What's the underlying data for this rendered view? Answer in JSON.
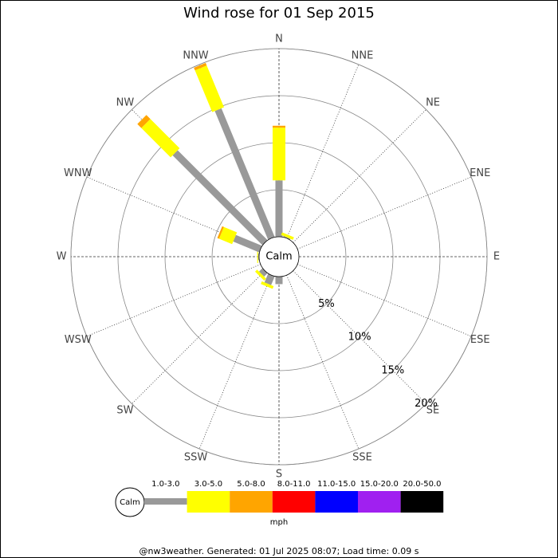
{
  "chart_data": {
    "type": "windrose",
    "title": "Wind rose for 01 Sep 2015",
    "directions": [
      "N",
      "NNE",
      "NE",
      "ENE",
      "E",
      "ESE",
      "SE",
      "SSE",
      "S",
      "SSW",
      "SW",
      "WSW",
      "W",
      "WNW",
      "NW",
      "NNW"
    ],
    "calm_label": "Calm",
    "units": "mph",
    "rlim": [
      0,
      20
    ],
    "rticks": [
      {
        "value": 5,
        "label": "5%"
      },
      {
        "value": 10,
        "label": "10%"
      },
      {
        "value": 15,
        "label": "15%"
      },
      {
        "value": 20,
        "label": "20%"
      }
    ],
    "series": [
      {
        "name": "1.0-3.0",
        "color": "#999999",
        "values": [
          6.0,
          0.1,
          0,
          0,
          0,
          0,
          0,
          0,
          0.8,
          1.0,
          0.5,
          0,
          0.1,
          3.0,
          13.5,
          14.8
        ]
      },
      {
        "name": "3.0-5.0",
        "color": "#ffff00",
        "values": [
          5.6,
          0.3,
          0,
          0,
          0,
          0,
          0,
          0,
          0,
          0.3,
          0.3,
          0,
          0.1,
          1.5,
          4.4,
          4.8
        ]
      },
      {
        "name": "5.0-8.0",
        "color": "#ffa500",
        "values": [
          0.2,
          0,
          0,
          0,
          0,
          0,
          0,
          0,
          0,
          0,
          0,
          0,
          0,
          0.2,
          0.6,
          0.3
        ]
      },
      {
        "name": "8.0-11.0",
        "color": "#ff0000",
        "values": [
          0,
          0,
          0,
          0,
          0,
          0,
          0,
          0,
          0,
          0,
          0,
          0,
          0,
          0,
          0,
          0
        ]
      },
      {
        "name": "11.0-15.0",
        "color": "#0000ff",
        "values": [
          0,
          0,
          0,
          0,
          0,
          0,
          0,
          0,
          0,
          0,
          0,
          0,
          0,
          0,
          0,
          0
        ]
      },
      {
        "name": "15.0-20.0",
        "color": "#a020f0",
        "values": [
          0,
          0,
          0,
          0,
          0,
          0,
          0,
          0,
          0,
          0,
          0,
          0,
          0,
          0,
          0,
          0
        ]
      },
      {
        "name": "20.0-50.0",
        "color": "#000000",
        "values": [
          0,
          0,
          0,
          0,
          0,
          0,
          0,
          0,
          0,
          0,
          0,
          0,
          0,
          0,
          0,
          0
        ]
      }
    ],
    "footer": "@nw3weather. Generated: 01 Jul 2025 08:07; Load time: 0.09 s"
  }
}
